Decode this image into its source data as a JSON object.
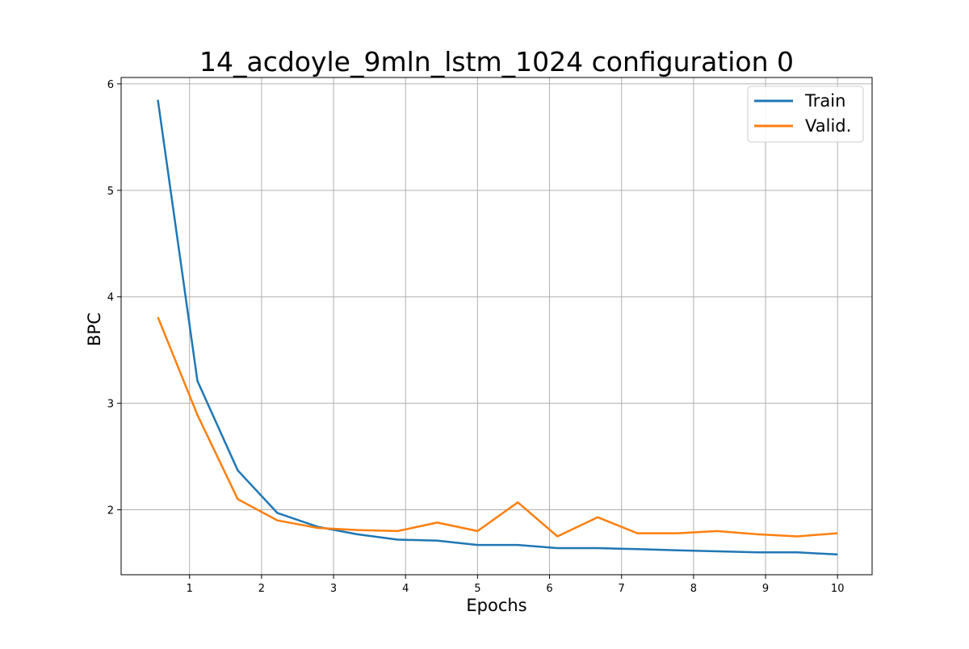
{
  "chart_data": {
    "type": "line",
    "title": "14_acdoyle_9mln_lstm_1024 configuration 0",
    "xlabel": "Epochs",
    "ylabel": "BPC",
    "xlim": [
      0.05,
      10.48
    ],
    "ylim": [
      1.39,
      6.06
    ],
    "xticks": [
      1,
      2,
      3,
      4,
      5,
      6,
      7,
      8,
      9,
      10
    ],
    "yticks": [
      2,
      3,
      4,
      5,
      6
    ],
    "grid": true,
    "legend_position": "top-right",
    "series": [
      {
        "name": "Train",
        "color": "#1f77b4",
        "x": [
          0.56,
          1.11,
          1.67,
          2.22,
          2.78,
          3.33,
          3.89,
          4.44,
          5.0,
          5.56,
          6.11,
          6.67,
          7.22,
          7.78,
          8.33,
          8.89,
          9.44,
          10.0
        ],
        "y": [
          5.85,
          3.21,
          2.37,
          1.97,
          1.84,
          1.77,
          1.72,
          1.71,
          1.67,
          1.67,
          1.64,
          1.64,
          1.63,
          1.62,
          1.61,
          1.6,
          1.6,
          1.58
        ]
      },
      {
        "name": "Valid.",
        "color": "#ff7f0e",
        "x": [
          0.56,
          1.11,
          1.67,
          2.22,
          2.78,
          3.33,
          3.89,
          4.44,
          5.0,
          5.56,
          6.11,
          6.67,
          7.22,
          7.78,
          8.33,
          8.89,
          9.44,
          10.0
        ],
        "y": [
          3.81,
          2.89,
          2.1,
          1.9,
          1.83,
          1.81,
          1.8,
          1.88,
          1.8,
          2.07,
          1.75,
          1.93,
          1.78,
          1.78,
          1.8,
          1.77,
          1.75,
          1.78
        ]
      }
    ]
  }
}
